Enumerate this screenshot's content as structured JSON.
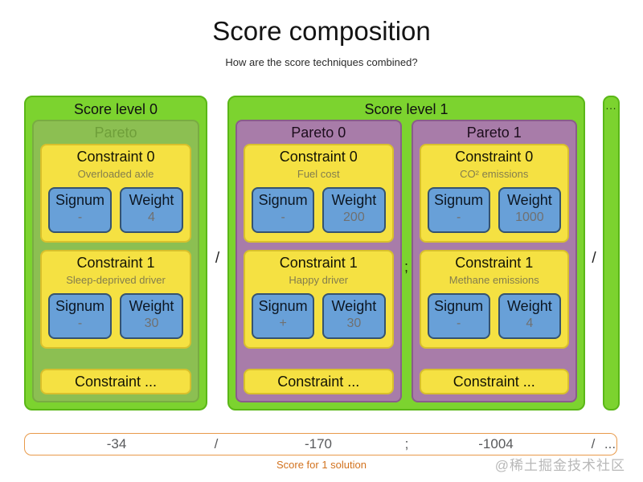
{
  "title": "Score composition",
  "subtitle": "How are the score techniques combined?",
  "labels": {
    "signum": "Signum",
    "weight": "Weight"
  },
  "levels": [
    {
      "label": "Score level 0",
      "paretos": [
        {
          "label": "Pareto",
          "constraints": [
            {
              "label": "Constraint 0",
              "description": "Overloaded axle",
              "signum": "-",
              "weight": "4"
            },
            {
              "label": "Constraint 1",
              "description": "Sleep-deprived driver",
              "signum": "-",
              "weight": "30"
            }
          ],
          "more_label": "Constraint ..."
        }
      ]
    },
    {
      "label": "Score level 1",
      "paretos": [
        {
          "label": "Pareto 0",
          "constraints": [
            {
              "label": "Constraint 0",
              "description": "Fuel cost",
              "signum": "-",
              "weight": "200"
            },
            {
              "label": "Constraint 1",
              "description": "Happy driver",
              "signum": "+",
              "weight": "30"
            }
          ],
          "more_label": "Constraint ..."
        },
        {
          "label": "Pareto 1",
          "constraints": [
            {
              "label": "Constraint 0",
              "description": "CO² emissions",
              "signum": "-",
              "weight": "1000"
            },
            {
              "label": "Constraint 1",
              "description": "Methane emissions",
              "signum": "-",
              "weight": "4"
            }
          ],
          "more_label": "Constraint ..."
        }
      ]
    }
  ],
  "separators": {
    "after_level0": "/",
    "between_paretos": ";",
    "after_level1": "/",
    "more_levels": "..."
  },
  "score_bar": {
    "level0_score": "-34",
    "sep1": "/",
    "pareto0_score": "-170",
    "sep2": ";",
    "pareto1_score": "-1004",
    "sep3": "/",
    "ellipsis": "...",
    "caption": "Score for 1 solution"
  },
  "watermark": "@稀土掘金技术社区",
  "colors": {
    "level_green": "#7cd32f",
    "level_green_border": "#5ab717",
    "pareto_ghost_bg": "#8cbf52",
    "pareto_ghost_text": "#6f9f3a",
    "pareto_purple": "#a87ca9",
    "pareto_purple_border": "#8a5c8b",
    "constraint_yellow": "#f5e142",
    "constraint_yellow_border": "#d8c02c",
    "signum_blue": "#68a0d8",
    "signum_blue_border": "#35536f",
    "value_gray": "#707070",
    "description_gray": "#837d4d",
    "score_caption_orange": "#d2721e",
    "score_bar_border_orange": "#e89a4a",
    "score_text_gray": "#58595b"
  }
}
